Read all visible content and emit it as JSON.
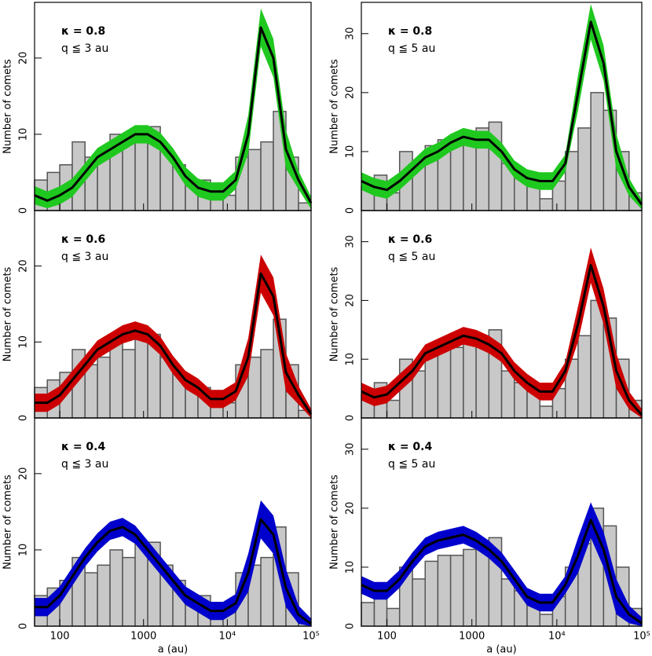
{
  "chart_data": [
    {
      "type": "histogram",
      "ylabel": "Number of comets",
      "annotations": [
        "κ = 0.8",
        "q ≦ 3 au"
      ],
      "log_x": true,
      "xtick_labels": false,
      "xlim": [
        50,
        100000
      ],
      "xticks": [
        100,
        1000,
        10000,
        100000
      ],
      "ylim": [
        0,
        27.3
      ],
      "yticks": [
        0,
        10,
        20
      ],
      "hist": {
        "color": "#c8c8c8",
        "edgecolor": "#555555",
        "bins": [
          50,
          71,
          100,
          141,
          200,
          282,
          398,
          562,
          794,
          1122,
          1585,
          2239,
          3162,
          4467,
          6310,
          8913,
          12589,
          17783,
          25119,
          35481,
          50119,
          70795,
          100000
        ],
        "counts": [
          4,
          5,
          6,
          9,
          7,
          8,
          10,
          9,
          11,
          11,
          8,
          6,
          4,
          4,
          2,
          2,
          7,
          8,
          9,
          13,
          7,
          1
        ]
      },
      "x": [
        50,
        71,
        100,
        141,
        200,
        282,
        398,
        562,
        794,
        1122,
        1585,
        2239,
        3162,
        4467,
        6310,
        8913,
        12589,
        17783,
        25119,
        35481,
        50119,
        70795,
        100000
      ],
      "band": {
        "color": "#1fc81f",
        "lower": [
          0.8,
          0.3,
          0.8,
          1.8,
          3.8,
          5.8,
          6.8,
          7.8,
          8.8,
          8.8,
          7.8,
          5.8,
          3.3,
          1.8,
          1.3,
          1.3,
          2.8,
          7.5,
          21.5,
          17.5,
          5.5,
          2.8,
          0.2
        ],
        "upper": [
          3.2,
          2.5,
          3.2,
          4.2,
          6.2,
          8.2,
          9.2,
          10.2,
          11.2,
          11.2,
          10.2,
          8.2,
          5.7,
          4.2,
          3.7,
          3.7,
          5.2,
          12.5,
          26.5,
          22.5,
          10.5,
          5.2,
          1.8
        ]
      },
      "line": {
        "color": "#000000",
        "values": [
          2,
          1.3,
          2,
          3,
          5,
          7,
          8,
          9,
          10,
          10,
          9,
          7,
          4.5,
          3,
          2.5,
          2.5,
          4,
          10,
          24,
          20,
          8,
          4,
          1
        ]
      }
    },
    {
      "type": "histogram",
      "ylabel": "Number of comets",
      "annotations": [
        "κ = 0.8",
        "q ≦ 5 au"
      ],
      "log_x": true,
      "xtick_labels": false,
      "xlim": [
        50,
        100000
      ],
      "xticks": [
        100,
        1000,
        10000,
        100000
      ],
      "ylim": [
        0,
        35.3
      ],
      "yticks": [
        0,
        10,
        20,
        30
      ],
      "hist": {
        "color": "#c8c8c8",
        "edgecolor": "#555555",
        "bins": [
          50,
          71,
          100,
          141,
          200,
          282,
          398,
          562,
          794,
          1122,
          1585,
          2239,
          3162,
          4467,
          6310,
          8913,
          12589,
          17783,
          25119,
          35481,
          50119,
          70795,
          100000
        ],
        "counts": [
          4,
          6,
          3,
          10,
          8,
          11,
          12,
          12,
          13,
          14,
          15,
          8,
          6,
          5,
          2,
          5,
          10,
          14,
          20,
          17,
          10,
          3
        ]
      },
      "x": [
        50,
        71,
        100,
        141,
        200,
        282,
        398,
        562,
        794,
        1122,
        1585,
        2239,
        3162,
        4467,
        6310,
        8913,
        12589,
        17783,
        25119,
        35481,
        50119,
        70795,
        100000
      ],
      "band": {
        "color": "#1fc81f",
        "lower": [
          3.5,
          2.5,
          2,
          3.5,
          5.5,
          7.5,
          8.5,
          10,
          11,
          10.5,
          10.5,
          8.5,
          5.5,
          4,
          3.5,
          3.5,
          6.5,
          17,
          29,
          22,
          7,
          2.5,
          0.2
        ],
        "upper": [
          6.5,
          5.5,
          5,
          6.5,
          8.5,
          10.5,
          11.5,
          13,
          14,
          13.5,
          13.5,
          11.5,
          8.5,
          7,
          6.5,
          6.5,
          9.5,
          23,
          35,
          28,
          13,
          5.5,
          1.8
        ]
      },
      "line": {
        "color": "#000000",
        "values": [
          5,
          4,
          3.5,
          5,
          7,
          9,
          10,
          11.5,
          12.5,
          12,
          12,
          10,
          7,
          5.5,
          5,
          5,
          8,
          20,
          32,
          25,
          10,
          4,
          1
        ]
      }
    },
    {
      "type": "histogram",
      "ylabel": "Number of comets",
      "annotations": [
        "κ = 0.6",
        "q ≦ 3 au"
      ],
      "log_x": true,
      "xtick_labels": false,
      "xlim": [
        50,
        100000
      ],
      "xticks": [
        100,
        1000,
        10000,
        100000
      ],
      "ylim": [
        0,
        27.3
      ],
      "yticks": [
        0,
        10,
        20
      ],
      "hist": {
        "color": "#c8c8c8",
        "edgecolor": "#555555",
        "bins": [
          50,
          71,
          100,
          141,
          200,
          282,
          398,
          562,
          794,
          1122,
          1585,
          2239,
          3162,
          4467,
          6310,
          8913,
          12589,
          17783,
          25119,
          35481,
          50119,
          70795,
          100000
        ],
        "counts": [
          4,
          5,
          6,
          9,
          7,
          8,
          10,
          9,
          11,
          11,
          8,
          6,
          4,
          4,
          2,
          2,
          7,
          8,
          9,
          13,
          7,
          1
        ]
      },
      "x": [
        50,
        71,
        100,
        141,
        200,
        282,
        398,
        562,
        794,
        1122,
        1585,
        2239,
        3162,
        4467,
        6310,
        8913,
        12589,
        17783,
        25119,
        35481,
        50119,
        70795,
        100000
      ],
      "band": {
        "color": "#cc0000",
        "lower": [
          0.8,
          0.8,
          1.8,
          3.8,
          5.8,
          7.8,
          8.8,
          9.8,
          10.3,
          9.8,
          8.3,
          5.8,
          3.8,
          2.8,
          1.3,
          1.3,
          2.3,
          5.5,
          16.5,
          13.5,
          3.5,
          1.8,
          0
        ],
        "upper": [
          3.2,
          3.2,
          4.2,
          6.2,
          8.2,
          10.2,
          11.2,
          12.2,
          12.7,
          12.2,
          10.7,
          8.2,
          6.2,
          5.2,
          3.7,
          3.7,
          4.7,
          10.5,
          21.5,
          18.5,
          8.5,
          4.2,
          1.2
        ]
      },
      "line": {
        "color": "#000000",
        "values": [
          2,
          2,
          3,
          5,
          7,
          9,
          10,
          11,
          11.5,
          11,
          9.5,
          7,
          5,
          4,
          2.5,
          2.5,
          3.5,
          8,
          19,
          16,
          6,
          3,
          0.5
        ]
      }
    },
    {
      "type": "histogram",
      "ylabel": "Number of comets",
      "annotations": [
        "κ = 0.6",
        "q ≦ 5 au"
      ],
      "log_x": true,
      "xtick_labels": false,
      "xlim": [
        50,
        100000
      ],
      "xticks": [
        100,
        1000,
        10000,
        100000
      ],
      "ylim": [
        0,
        35.3
      ],
      "yticks": [
        0,
        10,
        20,
        30
      ],
      "hist": {
        "color": "#c8c8c8",
        "edgecolor": "#555555",
        "bins": [
          50,
          71,
          100,
          141,
          200,
          282,
          398,
          562,
          794,
          1122,
          1585,
          2239,
          3162,
          4467,
          6310,
          8913,
          12589,
          17783,
          25119,
          35481,
          50119,
          70795,
          100000
        ],
        "counts": [
          4,
          6,
          3,
          10,
          8,
          11,
          12,
          12,
          13,
          14,
          15,
          8,
          6,
          5,
          2,
          5,
          10,
          14,
          20,
          17,
          10,
          3
        ]
      },
      "x": [
        50,
        71,
        100,
        141,
        200,
        282,
        398,
        562,
        794,
        1122,
        1585,
        2239,
        3162,
        4467,
        6310,
        8913,
        12589,
        17783,
        25119,
        35481,
        50119,
        70795,
        100000
      ],
      "band": {
        "color": "#cc0000",
        "lower": [
          3,
          2,
          2.5,
          4.5,
          6.5,
          9.5,
          10.5,
          11.5,
          12.5,
          12,
          11,
          9.5,
          6.5,
          4.5,
          3,
          3,
          6.5,
          13,
          23,
          16,
          5,
          1.5,
          0
        ],
        "upper": [
          6,
          5,
          5.5,
          7.5,
          9.5,
          12.5,
          13.5,
          14.5,
          15.5,
          15,
          14,
          12.5,
          9.5,
          7.5,
          6,
          6,
          9.5,
          19,
          29,
          22,
          11,
          4.5,
          1.5
        ]
      },
      "line": {
        "color": "#000000",
        "values": [
          4.5,
          3.5,
          4,
          6,
          8,
          11,
          12,
          13,
          14,
          13.5,
          12.5,
          11,
          8,
          6,
          4.5,
          4.5,
          8,
          16,
          26,
          19,
          8,
          3,
          0.5
        ]
      }
    },
    {
      "type": "histogram",
      "ylabel": "Number of comets",
      "xlabel": "a (au)",
      "annotations": [
        "κ = 0.4",
        "q ≦ 3 au"
      ],
      "log_x": true,
      "xtick_labels": true,
      "xlim": [
        50,
        100000
      ],
      "xticks": [
        100,
        1000,
        {
          "value": 10000,
          "label": "10⁴"
        },
        {
          "value": 100000,
          "label": "10⁵"
        }
      ],
      "ylim": [
        0,
        27.3
      ],
      "yticks": [
        0,
        10,
        20
      ],
      "hist": {
        "color": "#c8c8c8",
        "edgecolor": "#555555",
        "bins": [
          50,
          71,
          100,
          141,
          200,
          282,
          398,
          562,
          794,
          1122,
          1585,
          2239,
          3162,
          4467,
          6310,
          8913,
          12589,
          17783,
          25119,
          35481,
          50119,
          70795,
          100000
        ],
        "counts": [
          4,
          5,
          6,
          9,
          7,
          8,
          10,
          9,
          11,
          11,
          8,
          6,
          4,
          4,
          2,
          2,
          7,
          8,
          9,
          13,
          7,
          1
        ]
      },
      "x": [
        50,
        71,
        100,
        141,
        200,
        282,
        398,
        562,
        794,
        1122,
        1585,
        2239,
        3162,
        4467,
        6310,
        8913,
        12589,
        17783,
        25119,
        35481,
        50119,
        70795,
        100000
      ],
      "band": {
        "color": "#0000cc",
        "lower": [
          1.3,
          1.3,
          2.8,
          5.3,
          7.8,
          9.8,
          11.3,
          11.8,
          10.8,
          8.8,
          6.8,
          4.8,
          2.8,
          1.8,
          0.8,
          0.8,
          1.8,
          4.5,
          11.5,
          9.5,
          2.5,
          0.3,
          0
        ],
        "upper": [
          3.7,
          3.7,
          5.2,
          7.7,
          10.2,
          12.2,
          13.7,
          14.2,
          13.2,
          11.2,
          9.2,
          7.2,
          5.2,
          4.2,
          3.2,
          3.2,
          4.2,
          9.5,
          16.5,
          14.5,
          7.5,
          2.7,
          1
        ]
      },
      "line": {
        "color": "#000000",
        "values": [
          2.5,
          2.5,
          4,
          6.5,
          9,
          11,
          12.5,
          13,
          12,
          10,
          8,
          6,
          4,
          3,
          2,
          2,
          3,
          7,
          14,
          12,
          5,
          1.5,
          0.3
        ]
      }
    },
    {
      "type": "histogram",
      "ylabel": "Number of comets",
      "xlabel": "a (au)",
      "annotations": [
        "κ = 0.4",
        "q ≦ 5 au"
      ],
      "log_x": true,
      "xtick_labels": true,
      "xlim": [
        50,
        100000
      ],
      "xticks": [
        100,
        1000,
        {
          "value": 10000,
          "label": "10⁴"
        },
        {
          "value": 100000,
          "label": "10⁵"
        }
      ],
      "ylim": [
        0,
        35.3
      ],
      "yticks": [
        0,
        10,
        20,
        30
      ],
      "hist": {
        "color": "#c8c8c8",
        "edgecolor": "#555555",
        "bins": [
          50,
          71,
          100,
          141,
          200,
          282,
          398,
          562,
          794,
          1122,
          1585,
          2239,
          3162,
          4467,
          6310,
          8913,
          12589,
          17783,
          25119,
          35481,
          50119,
          70795,
          100000
        ],
        "counts": [
          4,
          6,
          3,
          10,
          8,
          11,
          12,
          12,
          13,
          14,
          15,
          8,
          6,
          5,
          2,
          5,
          10,
          14,
          20,
          17,
          10,
          3
        ]
      },
      "x": [
        50,
        71,
        100,
        141,
        200,
        282,
        398,
        562,
        794,
        1122,
        1585,
        2239,
        3162,
        4467,
        6310,
        8913,
        12589,
        17783,
        25119,
        35481,
        50119,
        70795,
        100000
      ],
      "band": {
        "color": "#0000cc",
        "lower": [
          5.5,
          4.5,
          4.5,
          6.5,
          9.5,
          12,
          13,
          13.5,
          14,
          13,
          11.5,
          9.5,
          6.5,
          3.5,
          2.5,
          2.5,
          5.5,
          9,
          15,
          10,
          2,
          0.5,
          0
        ],
        "upper": [
          8.5,
          7.5,
          7.5,
          9.5,
          12.5,
          15,
          16,
          16.5,
          17,
          16,
          14.5,
          12.5,
          9.5,
          6.5,
          5.5,
          5.5,
          8.5,
          15,
          21,
          16,
          8,
          3.5,
          1.5
        ]
      },
      "line": {
        "color": "#000000",
        "values": [
          7,
          6,
          6,
          8,
          11,
          13.5,
          14.5,
          15,
          15.5,
          14.5,
          13,
          11,
          8,
          5,
          4,
          4,
          7,
          12,
          18,
          13,
          5,
          2,
          0.5
        ]
      }
    }
  ]
}
